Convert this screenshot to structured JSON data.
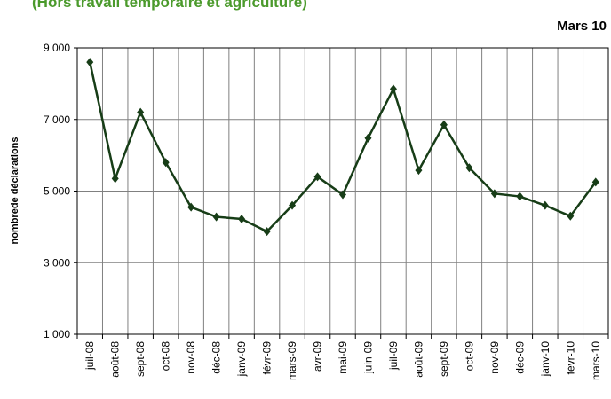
{
  "chart_data": {
    "type": "line",
    "title": "(Hors travail temporaire et agriculture)",
    "subtitle": "Mars 10",
    "y_label": "nombrede déclarations",
    "categories": [
      "juil-08",
      "août-08",
      "sept-08",
      "oct-08",
      "nov-08",
      "déc-08",
      "janv-09",
      "févr-09",
      "mars-09",
      "avr-09",
      "mai-09",
      "juin-09",
      "juil-09",
      "août-09",
      "sept-09",
      "oct-09",
      "nov-09",
      "déc-09",
      "janv-10",
      "févr-10",
      "mars-10"
    ],
    "series": [
      {
        "name": "nombrede déclarations",
        "color": "#173d17",
        "values": [
          8600,
          5350,
          7200,
          5800,
          4550,
          4280,
          4220,
          3870,
          4600,
          5400,
          4900,
          6480,
          7850,
          5580,
          6850,
          5650,
          4930,
          4850,
          4600,
          4300,
          5250
        ]
      }
    ],
    "ylim": [
      1000,
      9000
    ],
    "yticks": [
      {
        "value": 1000,
        "label": "1 000"
      },
      {
        "value": 3000,
        "label": "3 000"
      },
      {
        "value": 5000,
        "label": "5 000"
      },
      {
        "value": 7000,
        "label": "7 000"
      },
      {
        "value": 9000,
        "label": "9 000"
      }
    ],
    "grid": true
  }
}
